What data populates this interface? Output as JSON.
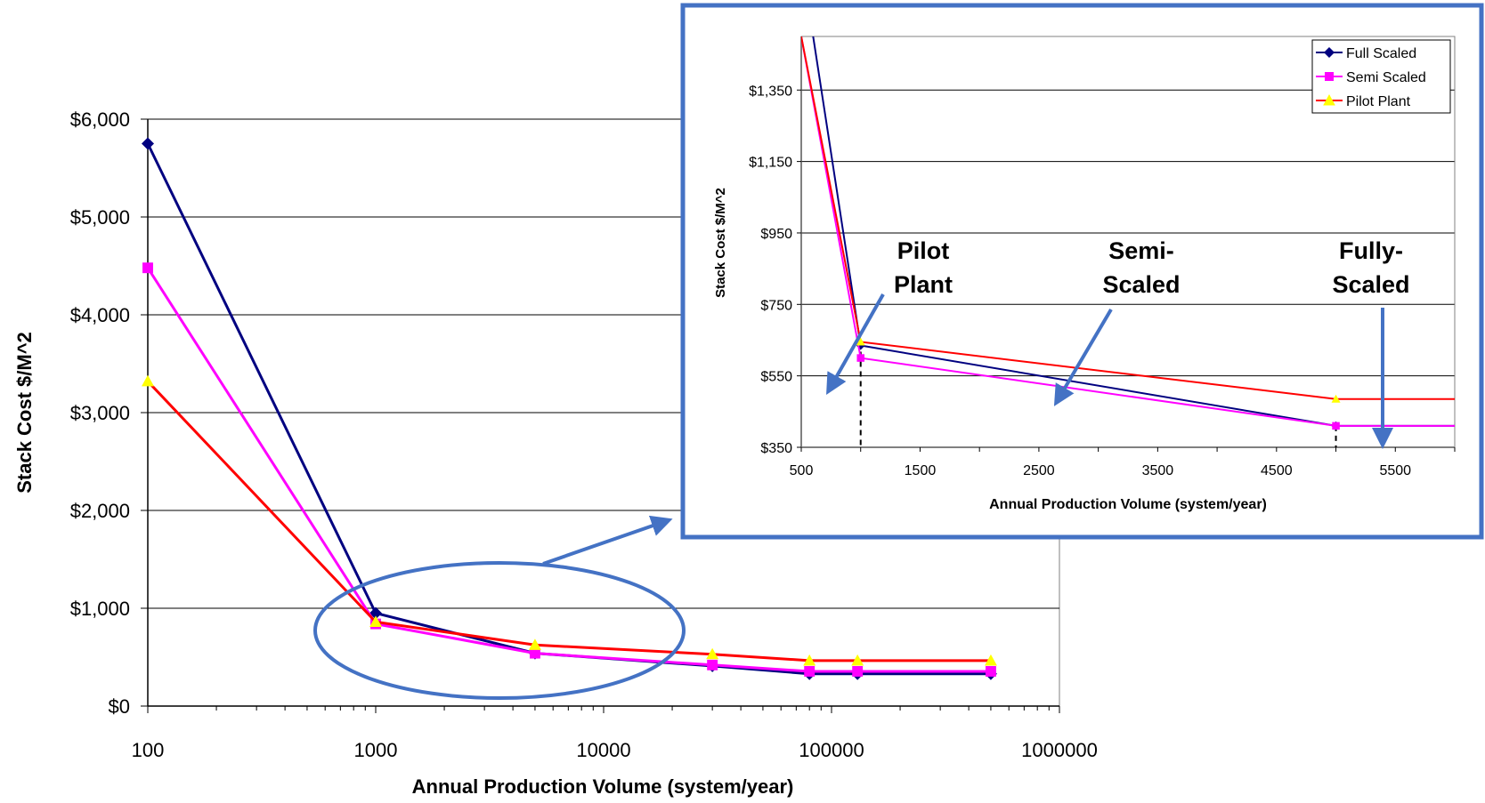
{
  "chart_data": [
    {
      "type": "line",
      "x_scale": "log",
      "xlabel": "Annual Production Volume (system/year)",
      "ylabel": "Stack Cost $/M^2",
      "xlim": [
        100,
        1000000
      ],
      "ylim": [
        0,
        6000
      ],
      "x_ticks": [
        "100",
        "1000",
        "10000",
        "100000",
        "1000000"
      ],
      "y_ticks": [
        "$0",
        "$1,000",
        "$2,000",
        "$3,000",
        "$4,000",
        "$5,000",
        "$6,000"
      ],
      "grid": "horizontal",
      "series": [
        {
          "name": "Full Scaled",
          "color": "#000080",
          "marker": "diamond",
          "points": [
            [
              100,
              5750
            ],
            [
              1000,
              950
            ],
            [
              5000,
              540
            ],
            [
              30000,
              410
            ],
            [
              80000,
              330
            ],
            [
              130000,
              330
            ],
            [
              500000,
              330
            ]
          ]
        },
        {
          "name": "Semi Scaled",
          "color": "#ff00ff",
          "marker": "square",
          "points": [
            [
              100,
              4480
            ],
            [
              1000,
              840
            ],
            [
              5000,
              540
            ],
            [
              30000,
              420
            ],
            [
              80000,
              355
            ],
            [
              130000,
              355
            ],
            [
              500000,
              355
            ]
          ]
        },
        {
          "name": "Pilot Plant",
          "color": "#ff0000",
          "marker": "triangle",
          "points": [
            [
              100,
              3320
            ],
            [
              1000,
              860
            ],
            [
              5000,
              625
            ],
            [
              30000,
              530
            ],
            [
              80000,
              465
            ],
            [
              130000,
              465
            ],
            [
              500000,
              465
            ]
          ]
        }
      ]
    },
    {
      "type": "line",
      "xlabel": "Annual Production Volume (system/year)",
      "ylabel": "Stack Cost $/M^2",
      "xlim": [
        500,
        6000
      ],
      "ylim": [
        350,
        1500
      ],
      "x_ticks": [
        "500",
        "1500",
        "2500",
        "3500",
        "4500",
        "5500"
      ],
      "y_ticks": [
        "$350",
        "$550",
        "$750",
        "$950",
        "$1,150",
        "$1,350"
      ],
      "grid": "horizontal",
      "legend": "top-right",
      "series": [
        {
          "name": "Full Scaled",
          "color": "#000080",
          "marker": "diamond",
          "points": [
            [
              600,
              1500
            ],
            [
              1000,
              635
            ],
            [
              5000,
              410
            ],
            [
              6000,
              410
            ]
          ]
        },
        {
          "name": "Semi Scaled",
          "color": "#ff00ff",
          "marker": "square",
          "points": [
            [
              500,
              1500
            ],
            [
              1000,
              600
            ],
            [
              5000,
              410
            ],
            [
              6000,
              410
            ]
          ]
        },
        {
          "name": "Pilot Plant",
          "color": "#ff0000",
          "marker": "triangle",
          "points": [
            [
              500,
              1500
            ],
            [
              1000,
              645
            ],
            [
              5000,
              485
            ],
            [
              6000,
              485
            ]
          ]
        }
      ],
      "annotations": [
        {
          "label": "Pilot Plant",
          "line1": "Pilot",
          "line2": "Plant"
        },
        {
          "label": "Semi-Scaled",
          "line1": "Semi-",
          "line2": "Scaled"
        },
        {
          "label": "Fully-Scaled",
          "line1": "Fully-",
          "line2": "Scaled"
        }
      ]
    }
  ],
  "colors": {
    "callout_border": "#4472c4",
    "callout_arrow": "#4472c4"
  }
}
